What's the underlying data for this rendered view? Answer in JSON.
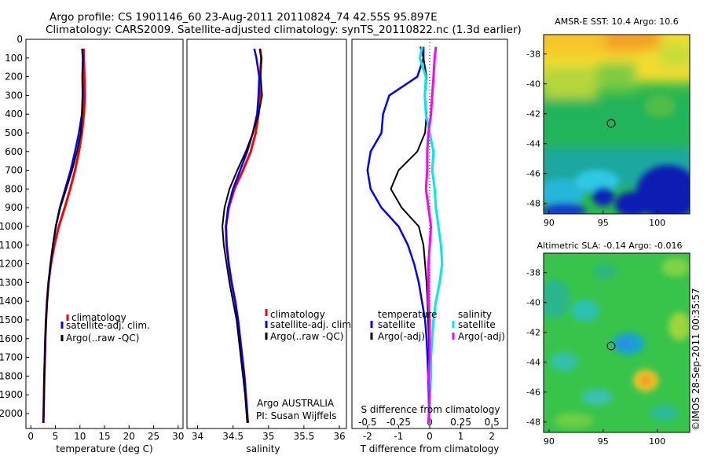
{
  "figure": {
    "title_line1": "Argo profile: CS 1901146_60 23-Aug-2011 20110824_74 42.55S 95.897E",
    "title_line2": "Climatology: CARS2009. Satellite-adjusted climatology: synTS_20110822.nc (1.3d earlier)",
    "credit": "©IMOS 28-Sep-2011 00:35:57",
    "argo_note_line1": "Argo AUSTRALIA",
    "argo_note_line2": "PI: Susan Wijffels"
  },
  "colors": {
    "climatology": "#ff0000",
    "satellite": "#0000ff",
    "argo": "#000000",
    "s_satellite": "#00e8f0",
    "s_argo": "#ff00ff"
  },
  "legend": {
    "climatology": "climatology",
    "satellite_adj": "satellite-adj. clim.",
    "argo_raw": "Argo(..raw -QC)",
    "temperature_hdr": "temperature",
    "salinity_hdr": "salinity",
    "satellite": "satellite",
    "argo_adj": "Argo(-adj)"
  },
  "chart_data": [
    {
      "type": "line",
      "id": "temperature",
      "xlabel": "temperature (deg C)",
      "ylabel": "",
      "xlim": [
        -1,
        31
      ],
      "ylim": [
        2080,
        0
      ],
      "xticks": [
        0,
        5,
        10,
        15,
        20,
        25,
        30
      ],
      "yticks": [
        0,
        100,
        200,
        300,
        400,
        500,
        600,
        700,
        800,
        900,
        1000,
        1100,
        1200,
        1300,
        1400,
        1500,
        1600,
        1700,
        1800,
        1900,
        2000
      ],
      "series": [
        {
          "name": "climatology",
          "x": [
            10.8,
            10.8,
            10.9,
            11.0,
            10.8,
            10.4,
            9.8,
            9.0,
            8.0,
            6.9,
            5.7,
            4.8,
            4.1,
            3.6,
            3.3,
            3.1,
            2.95,
            2.85,
            2.75,
            2.68,
            2.6,
            2.55
          ],
          "y": [
            50,
            100,
            200,
            300,
            400,
            500,
            600,
            700,
            800,
            900,
            1000,
            1100,
            1200,
            1300,
            1400,
            1500,
            1600,
            1700,
            1800,
            1900,
            2000,
            2050
          ]
        },
        {
          "name": "satellite-adj. clim.",
          "x": [
            10.5,
            10.6,
            10.5,
            10.6,
            10.4,
            9.8,
            9.0,
            8.1,
            7.0,
            5.9,
            5.1,
            4.5,
            4.0,
            3.6,
            3.3,
            3.1,
            2.95,
            2.85,
            2.75,
            2.68,
            2.6,
            2.55
          ],
          "y": [
            50,
            100,
            200,
            300,
            400,
            500,
            600,
            700,
            800,
            900,
            1000,
            1100,
            1200,
            1300,
            1400,
            1500,
            1600,
            1700,
            1800,
            1900,
            2000,
            2050
          ]
        },
        {
          "name": "Argo(..raw -QC)",
          "x": [
            10.4,
            10.6,
            10.5,
            10.5,
            10.4,
            10.2,
            9.4,
            8.4,
            7.2,
            6.0,
            5.1,
            4.5,
            4.0,
            3.6,
            3.3,
            3.1,
            2.95,
            2.85,
            2.75,
            2.68,
            2.6,
            2.55
          ],
          "y": [
            50,
            100,
            200,
            300,
            400,
            500,
            600,
            700,
            800,
            900,
            1000,
            1100,
            1200,
            1300,
            1400,
            1500,
            1600,
            1700,
            1800,
            1900,
            2000,
            2050
          ]
        }
      ]
    },
    {
      "type": "line",
      "id": "salinity",
      "xlabel": "salinity",
      "ylabel": "",
      "xlim": [
        33.85,
        36.1
      ],
      "ylim": [
        2080,
        0
      ],
      "xticks": [
        34,
        34.5,
        35,
        35.5,
        36
      ],
      "series": [
        {
          "name": "climatology",
          "x": [
            34.88,
            34.9,
            34.88,
            34.88,
            34.86,
            34.82,
            34.75,
            34.64,
            34.52,
            34.44,
            34.4,
            34.41,
            34.44,
            34.48,
            34.53,
            34.57,
            34.6,
            34.63,
            34.66,
            34.68,
            34.7,
            34.71
          ],
          "y": [
            50,
            100,
            200,
            300,
            400,
            500,
            600,
            700,
            800,
            900,
            1000,
            1100,
            1200,
            1300,
            1400,
            1500,
            1600,
            1700,
            1800,
            1900,
            2000,
            2050
          ]
        },
        {
          "name": "satellite-adj. clim.",
          "x": [
            34.8,
            34.83,
            34.87,
            34.86,
            34.84,
            34.78,
            34.7,
            34.6,
            34.5,
            34.43,
            34.4,
            34.41,
            34.44,
            34.48,
            34.53,
            34.57,
            34.6,
            34.63,
            34.66,
            34.68,
            34.7,
            34.71
          ],
          "y": [
            50,
            100,
            200,
            300,
            400,
            500,
            600,
            700,
            800,
            900,
            1000,
            1100,
            1200,
            1300,
            1400,
            1500,
            1600,
            1700,
            1800,
            1900,
            2000,
            2050
          ]
        },
        {
          "name": "Argo(..raw -QC)",
          "x": [
            34.88,
            34.9,
            34.89,
            34.91,
            34.86,
            34.78,
            34.68,
            34.56,
            34.45,
            34.38,
            34.35,
            34.37,
            34.41,
            34.45,
            34.5,
            34.55,
            34.58,
            34.61,
            34.64,
            34.67,
            34.69,
            34.7
          ],
          "y": [
            50,
            100,
            200,
            300,
            400,
            500,
            600,
            700,
            800,
            900,
            1000,
            1100,
            1200,
            1300,
            1400,
            1500,
            1600,
            1700,
            1800,
            1900,
            2000,
            2050
          ]
        }
      ]
    },
    {
      "type": "line",
      "id": "differences",
      "xlabel": "T difference from climatology",
      "x2label": "S difference from climatology",
      "ylabel": "",
      "xlim": [
        -2.5,
        2.5
      ],
      "ylim": [
        2080,
        0
      ],
      "xticks": [
        -2,
        -1,
        0,
        1,
        2
      ],
      "x2ticks": [
        -0.5,
        -0.25,
        0,
        0.25,
        0.5
      ],
      "x2ticklabels": [
        "-0.5",
        "-0.25",
        "0",
        "0.25",
        "0.5"
      ],
      "series": [
        {
          "name": "temperature satellite",
          "x": [
            -0.2,
            -0.2,
            -0.4,
            -1.3,
            -1.5,
            -1.55,
            -1.9,
            -2.0,
            -1.9,
            -1.55,
            -1.0,
            -0.7,
            -0.5,
            -0.35,
            -0.25,
            -0.15,
            -0.1,
            -0.07,
            -0.05,
            -0.03,
            -0.02
          ],
          "y": [
            40,
            100,
            200,
            300,
            400,
            500,
            600,
            700,
            800,
            900,
            1000,
            1100,
            1200,
            1300,
            1400,
            1500,
            1600,
            1700,
            1800,
            1900,
            2050
          ]
        },
        {
          "name": "temperature Argo(-adj)",
          "x": [
            -0.3,
            -0.2,
            -0.1,
            -0.15,
            -0.1,
            -0.15,
            -0.4,
            -1.0,
            -1.25,
            -0.9,
            -0.35,
            -0.2,
            -0.15,
            -0.1,
            -0.07,
            -0.05,
            -0.03,
            -0.02,
            -0.01,
            -0.01,
            -0.01
          ],
          "y": [
            40,
            100,
            200,
            300,
            400,
            500,
            600,
            700,
            800,
            900,
            1000,
            1100,
            1200,
            1300,
            1400,
            1500,
            1600,
            1700,
            1800,
            1900,
            2050
          ]
        },
        {
          "name": "salinity satellite",
          "x": [
            -0.06,
            -0.08,
            -0.03,
            -0.04,
            -0.03,
            0.0,
            0.03,
            0.02,
            0.04,
            0.05,
            0.07,
            0.09,
            0.1,
            0.08,
            0.05,
            0.03,
            0.02,
            0.01,
            0.01,
            0.0,
            0.0
          ],
          "y": [
            40,
            100,
            200,
            300,
            400,
            500,
            600,
            700,
            800,
            900,
            1000,
            1100,
            1200,
            1300,
            1400,
            1500,
            1600,
            1700,
            1800,
            1900,
            2050
          ]
        },
        {
          "name": "salinity Argo(-adj)",
          "x": [
            0.05,
            0.04,
            0.03,
            0.02,
            0.01,
            -0.01,
            -0.02,
            -0.02,
            -0.03,
            -0.01,
            0.01,
            0.0,
            -0.01,
            -0.01,
            -0.01,
            0.0,
            0.0,
            0.0,
            -0.01,
            0.0,
            -0.01
          ],
          "y": [
            40,
            100,
            200,
            300,
            400,
            500,
            600,
            700,
            800,
            900,
            1000,
            1100,
            1200,
            1300,
            1400,
            1500,
            1600,
            1700,
            1800,
            1900,
            2050
          ]
        }
      ]
    },
    {
      "type": "heatmap",
      "id": "sst_map",
      "title": "AMSR-E SST: 10.4 Argo: 10.6",
      "xlim": [
        89.5,
        103
      ],
      "ylim": [
        -48.7,
        -36.7
      ],
      "xticks": [
        90,
        95,
        100
      ],
      "yticks": [
        -38,
        -40,
        -42,
        -44,
        -46,
        -48
      ],
      "argo_position": {
        "lon": 95.897,
        "lat": -42.55
      }
    },
    {
      "type": "heatmap",
      "id": "sla_map",
      "title": "Altimetric SLA: -0.14 Argo: -0.016",
      "xlim": [
        89.5,
        103
      ],
      "ylim": [
        -48.7,
        -36.7
      ],
      "xticks": [
        90,
        95,
        100
      ],
      "yticks": [
        -38,
        -40,
        -42,
        -44,
        -46,
        -48
      ],
      "argo_position": {
        "lon": 95.897,
        "lat": -42.55
      }
    }
  ]
}
